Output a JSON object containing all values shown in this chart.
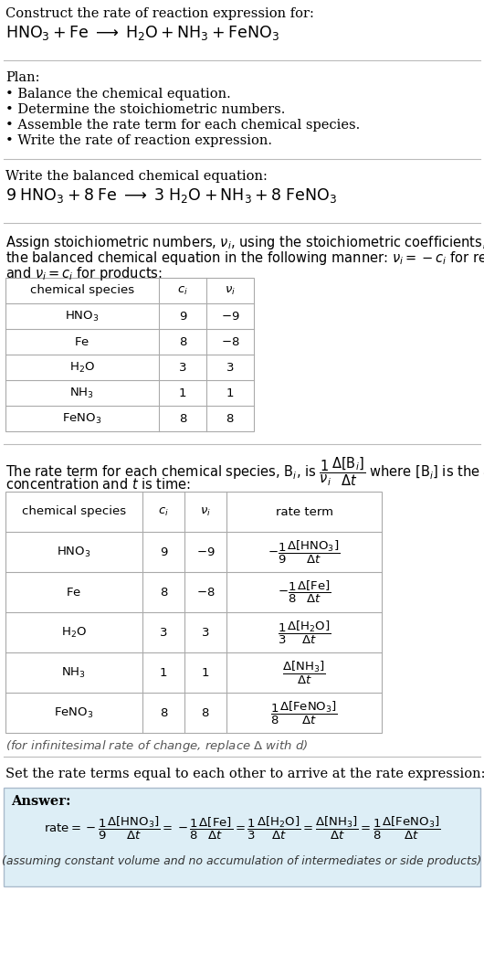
{
  "bg_color": "#ffffff",
  "text_color": "#000000",
  "table_border": "#aaaaaa",
  "light_blue_bg": "#ddeef6",
  "answer_border": "#aabbcc",
  "title_text": "Construct the rate of reaction expression for:",
  "reaction_unbalanced": "$\\mathrm{HNO_3} + \\mathrm{Fe}\\;\\longrightarrow\\;\\mathrm{H_2O} + \\mathrm{NH_3} + \\mathrm{FeNO_3}$",
  "plan_header": "Plan:",
  "plan_items": [
    "\\bullet\\; Balance the chemical equation.",
    "\\bullet\\; Determine the stoichiometric numbers.",
    "\\bullet\\; Assemble the rate term for each chemical species.",
    "\\bullet\\; Write the rate of reaction expression."
  ],
  "balanced_header": "Write the balanced chemical equation:",
  "reaction_balanced": "$9\\;\\mathrm{HNO_3} + 8\\;\\mathrm{Fe}\\;\\longrightarrow\\;3\\;\\mathrm{H_2O} + \\mathrm{NH_3} + 8\\;\\mathrm{FeNO_3}$",
  "stoich_intro_1": "Assign stoichiometric numbers, $\\nu_i$, using the stoichiometric coefficients, $c_i$, from",
  "stoich_intro_2": "the balanced chemical equation in the following manner: $\\nu_i = -c_i$ for reactants",
  "stoich_intro_3": "and $\\nu_i = c_i$ for products:",
  "table1_headers": [
    "chemical species",
    "$c_i$",
    "$\\nu_i$"
  ],
  "table1_data": [
    [
      "$\\mathrm{HNO_3}$",
      "9",
      "$-9$"
    ],
    [
      "$\\mathrm{Fe}$",
      "8",
      "$-8$"
    ],
    [
      "$\\mathrm{H_2O}$",
      "3",
      "$3$"
    ],
    [
      "$\\mathrm{NH_3}$",
      "1",
      "$1$"
    ],
    [
      "$\\mathrm{FeNO_3}$",
      "8",
      "$8$"
    ]
  ],
  "rate_intro_1": "The rate term for each chemical species, $\\mathrm{B}_i$, is $\\dfrac{1}{\\nu_i}\\dfrac{\\Delta[\\mathrm{B}_i]}{\\Delta t}$ where $[\\mathrm{B}_i]$ is the amount",
  "rate_intro_2": "concentration and $t$ is time:",
  "table2_headers": [
    "chemical species",
    "$c_i$",
    "$\\nu_i$",
    "rate term"
  ],
  "table2_data": [
    [
      "$\\mathrm{HNO_3}$",
      "9",
      "$-9$",
      "$-\\dfrac{1}{9}\\dfrac{\\Delta[\\mathrm{HNO_3}]}{\\Delta t}$"
    ],
    [
      "$\\mathrm{Fe}$",
      "8",
      "$-8$",
      "$-\\dfrac{1}{8}\\dfrac{\\Delta[\\mathrm{Fe}]}{\\Delta t}$"
    ],
    [
      "$\\mathrm{H_2O}$",
      "3",
      "$3$",
      "$\\dfrac{1}{3}\\dfrac{\\Delta[\\mathrm{H_2O}]}{\\Delta t}$"
    ],
    [
      "$\\mathrm{NH_3}$",
      "1",
      "$1$",
      "$\\dfrac{\\Delta[\\mathrm{NH_3}]}{\\Delta t}$"
    ],
    [
      "$\\mathrm{FeNO_3}$",
      "8",
      "$8$",
      "$\\dfrac{1}{8}\\dfrac{\\Delta[\\mathrm{FeNO_3}]}{\\Delta t}$"
    ]
  ],
  "infinitesimal_note": "(for infinitesimal rate of change, replace $\\Delta$ with $d$)",
  "set_equal_text": "Set the rate terms equal to each other to arrive at the rate expression:",
  "answer_label": "Answer:",
  "rate_expression": "$\\mathrm{rate} = -\\dfrac{1}{9}\\dfrac{\\Delta[\\mathrm{HNO_3}]}{\\Delta t} = -\\dfrac{1}{8}\\dfrac{\\Delta[\\mathrm{Fe}]}{\\Delta t} = \\dfrac{1}{3}\\dfrac{\\Delta[\\mathrm{H_2O}]}{\\Delta t} = \\dfrac{\\Delta[\\mathrm{NH_3}]}{\\Delta t} = \\dfrac{1}{8}\\dfrac{\\Delta[\\mathrm{FeNO_3}]}{\\Delta t}$",
  "assuming_note": "(assuming constant volume and no accumulation of intermediates or side products)"
}
